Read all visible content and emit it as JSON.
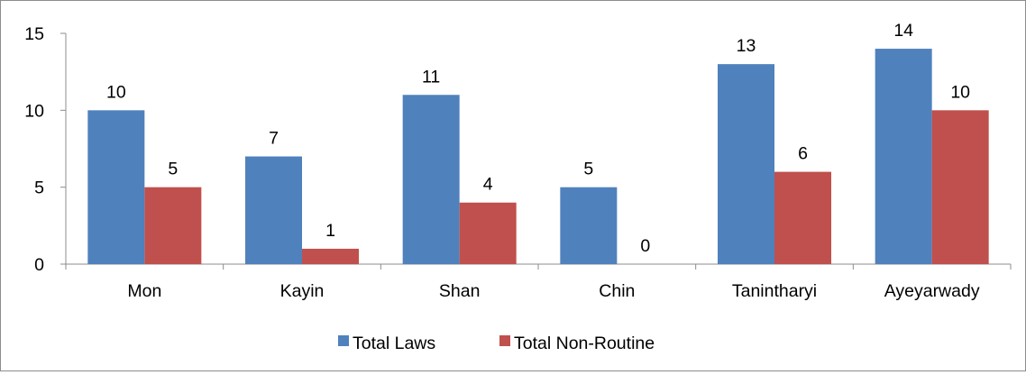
{
  "chart_data": {
    "type": "bar",
    "title": "",
    "xlabel": "",
    "ylabel": "",
    "categories": [
      "Mon",
      "Kayin",
      "Shan",
      "Chin",
      "Tanintharyi",
      "Ayeyarwady"
    ],
    "series": [
      {
        "name": "Total Laws",
        "color": "#4f81bd",
        "values": [
          10,
          7,
          11,
          5,
          13,
          14
        ]
      },
      {
        "name": "Total Non-Routine",
        "color": "#c0504d",
        "values": [
          5,
          1,
          4,
          0,
          6,
          10
        ]
      }
    ],
    "ylim": [
      0,
      15
    ],
    "yticks": [
      0,
      5,
      10,
      15
    ],
    "grid": false,
    "legend_position": "bottom",
    "data_labels": true
  }
}
